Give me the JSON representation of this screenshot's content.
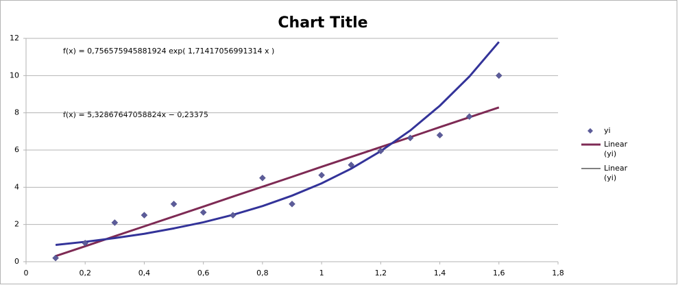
{
  "chart_data": {
    "type": "scatter",
    "title": "Chart Title",
    "annotations": [
      "f(x) = 0,756575945881924 exp( 1,71417056991314 x )",
      "f(x) = 5,32867647058824x − 0,23375"
    ],
    "x": [
      0.1,
      0.2,
      0.3,
      0.4,
      0.5,
      0.6,
      0.7,
      0.8,
      0.9,
      1.0,
      1.1,
      1.2,
      1.3,
      1.4,
      1.5,
      1.6
    ],
    "series": [
      {
        "name": "yi",
        "color": "#5c5c99",
        "kind": "points",
        "values": [
          0.2,
          1.0,
          2.1,
          2.5,
          3.1,
          2.65,
          2.5,
          4.5,
          3.1,
          4.65,
          5.2,
          5.95,
          6.65,
          6.8,
          7.8,
          10.0
        ]
      },
      {
        "name": "Linear (yi)",
        "color": "#7e2a54",
        "kind": "line",
        "values": [
          0.3,
          0.83,
          1.37,
          1.9,
          2.43,
          2.96,
          3.5,
          4.03,
          4.56,
          5.1,
          5.63,
          6.16,
          6.69,
          7.23,
          7.76,
          8.29
        ]
      },
      {
        "name": "Linear (yi)",
        "color": "#333399",
        "kind": "line",
        "values": [
          0.9,
          1.07,
          1.27,
          1.5,
          1.79,
          2.12,
          2.52,
          2.99,
          3.55,
          4.21,
          5.0,
          5.94,
          7.05,
          8.38,
          9.95,
          11.81
        ]
      }
    ],
    "xlim": [
      0,
      1.8
    ],
    "xticks": [
      0,
      {
        "value": 0.2,
        "label": "0,2"
      },
      {
        "value": 0.4,
        "label": "0,4"
      },
      {
        "value": 0.6,
        "label": "0,6"
      },
      {
        "value": 0.8,
        "label": "0,8"
      },
      1,
      {
        "value": 1.2,
        "label": "1,2"
      },
      {
        "value": 1.4,
        "label": "1,4"
      },
      {
        "value": 1.6,
        "label": "1,6"
      },
      {
        "value": 1.8,
        "label": "1,8"
      }
    ],
    "ylim": [
      0,
      12
    ],
    "yticks": [
      0,
      2,
      4,
      6,
      8,
      10,
      12
    ],
    "grid": true
  }
}
